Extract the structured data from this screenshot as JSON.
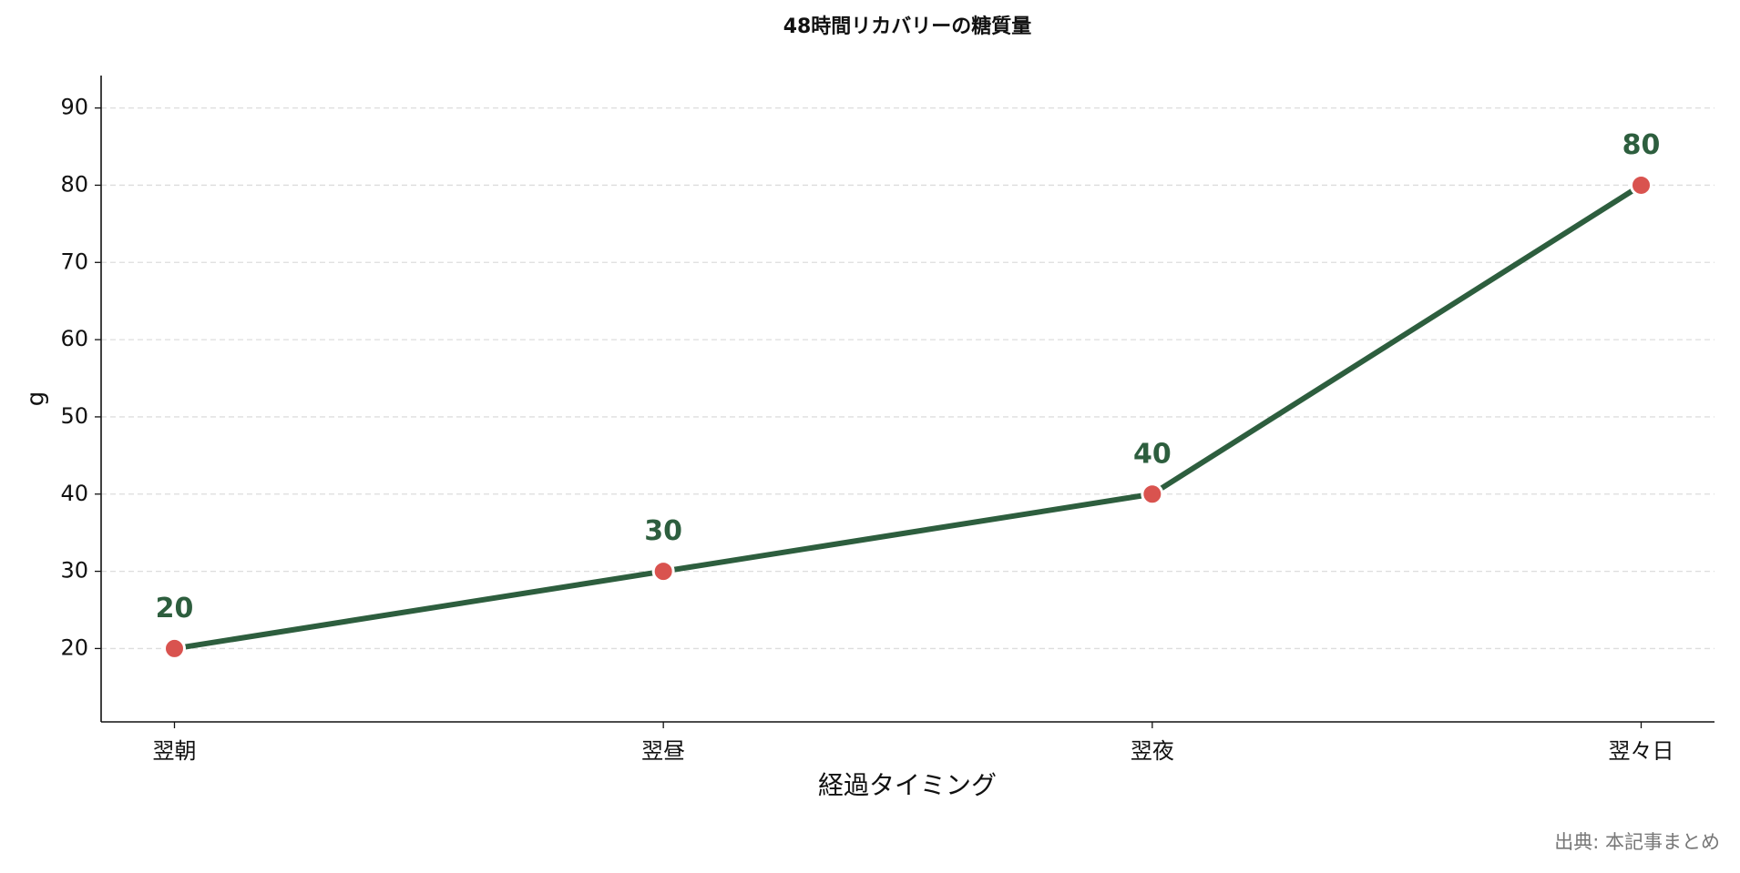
{
  "chart_data": {
    "type": "line",
    "title": "48時間リカバリーの糖質量",
    "x_label": "経過タイミング",
    "y_label": "g",
    "categories": [
      "翌朝",
      "翌昼",
      "翌夜",
      "翌々日"
    ],
    "series": [
      {
        "name": "糖質量",
        "color": "#2d5e3e",
        "marker_color": "#d9534f",
        "values": [
          20,
          30,
          40,
          80
        ]
      }
    ],
    "ylim": [
      10.5,
      94.2
    ],
    "yticks": [
      20,
      30,
      40,
      50,
      60,
      70,
      80,
      90
    ],
    "grid": true,
    "source": "出典: 本記事まとめ"
  }
}
